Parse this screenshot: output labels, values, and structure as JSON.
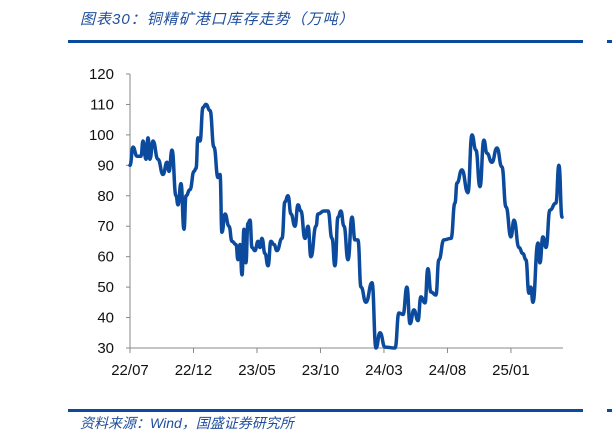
{
  "header": {
    "title": "图表30：铜精矿港口库存走势（万吨）"
  },
  "footer": {
    "source": "资料来源：Wind，国盛证券研究所"
  },
  "colors": {
    "line": "#0b4a9c",
    "rule": "#0b4a9c",
    "axis": "#888888"
  },
  "chart_data": {
    "type": "line",
    "title": "铜精矿港口库存走势（万吨）",
    "xlabel": "",
    "ylabel": "万吨",
    "x_unit": "months since 2022-07",
    "xlim": [
      0,
      34.1
    ],
    "ylim": [
      30,
      120
    ],
    "yticks": [
      30,
      40,
      50,
      60,
      70,
      80,
      90,
      100,
      110,
      120
    ],
    "xticks": [
      {
        "x": 0,
        "label": "22/07"
      },
      {
        "x": 5,
        "label": "22/12"
      },
      {
        "x": 10,
        "label": "23/05"
      },
      {
        "x": 15,
        "label": "23/10"
      },
      {
        "x": 20,
        "label": "24/03"
      },
      {
        "x": 25,
        "label": "24/08"
      },
      {
        "x": 30,
        "label": "25/01"
      }
    ],
    "grid": false,
    "legend": "none",
    "series": [
      {
        "name": "铜精矿港口库存",
        "x": [
          0,
          0.24,
          0.55,
          0.87,
          1.02,
          1.26,
          1.42,
          1.57,
          1.81,
          2.2,
          2.6,
          2.91,
          3.07,
          3.31,
          3.62,
          3.78,
          4.02,
          4.25,
          4.41,
          4.72,
          5.04,
          5.2,
          5.35,
          5.51,
          5.75,
          5.98,
          6.3,
          6.61,
          6.93,
          7.09,
          7.24,
          7.48,
          7.8,
          8.03,
          8.35,
          8.5,
          8.66,
          8.82,
          8.98,
          9.13,
          9.29,
          9.45,
          9.61,
          9.84,
          10.08,
          10.24,
          10.39,
          10.63,
          10.87,
          11.1,
          11.34,
          11.57,
          11.97,
          12.2,
          12.44,
          12.68,
          12.99,
          13.23,
          13.46,
          13.78,
          14.02,
          14.25,
          14.65,
          14.8,
          15.28,
          15.59,
          15.91,
          16.14,
          16.38,
          16.61,
          16.85,
          17.17,
          17.48,
          17.72,
          17.95,
          18.19,
          18.58,
          19.06,
          19.37,
          19.69,
          20.08,
          20.87,
          21.18,
          21.5,
          21.81,
          22.05,
          22.36,
          22.68,
          22.91,
          23.23,
          23.46,
          23.7,
          24.09,
          24.33,
          24.72,
          25.28,
          25.59,
          25.75,
          26.14,
          26.61,
          26.93,
          27.24,
          27.56,
          27.87,
          28.11,
          28.5,
          28.9,
          29.29,
          29.61,
          30.0,
          30.24,
          30.63,
          30.94,
          31.18,
          31.42,
          31.57,
          31.73,
          32.13,
          32.28,
          32.52,
          32.76,
          33.07,
          33.54,
          33.78,
          34.02
        ],
        "values": [
          90,
          96,
          93,
          93,
          98,
          92,
          99,
          92,
          98,
          92,
          87,
          91,
          88,
          95,
          80,
          77,
          84,
          69,
          80,
          82,
          88,
          89,
          99,
          98,
          109,
          110,
          108,
          96,
          86,
          87,
          68,
          74,
          70,
          65,
          64,
          59,
          64,
          54,
          69,
          58,
          71,
          72,
          63,
          62,
          65,
          63,
          66,
          61,
          57,
          65,
          64,
          62,
          66,
          78,
          80,
          74,
          70,
          77,
          75,
          66,
          70,
          60,
          70,
          74,
          75,
          75,
          66,
          57,
          73,
          75,
          70,
          59,
          73,
          65.5,
          65.5,
          50,
          45,
          51.4,
          30,
          35,
          30.3,
          30,
          41.5,
          41,
          50,
          38,
          42.5,
          39,
          46.8,
          44.8,
          56,
          48.4,
          47.4,
          59,
          65.5,
          66,
          77.6,
          84.2,
          88.5,
          81,
          100,
          95,
          83,
          98.3,
          94,
          91,
          95.7,
          89.5,
          76.3,
          66.5,
          72,
          63,
          61,
          59,
          48,
          50,
          45,
          64.5,
          58,
          66.5,
          63,
          75.3,
          77.6,
          90,
          73
        ]
      }
    ]
  }
}
